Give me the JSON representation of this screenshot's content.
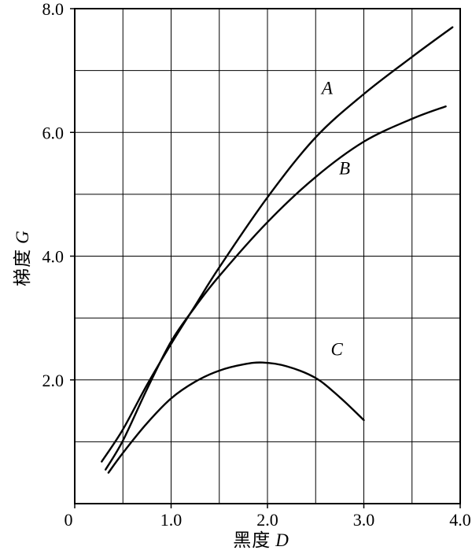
{
  "chart_data": {
    "type": "line",
    "title": "",
    "xlabel_cn": "黑度",
    "xlabel_var": "D",
    "ylabel_cn": "梯度",
    "ylabel_var": "G",
    "xlim": [
      0,
      4
    ],
    "ylim": [
      0,
      8
    ],
    "x_grid_step": 0.5,
    "y_grid_step": 1.0,
    "grid": true,
    "legend_position": "inline-labels",
    "stroke_color": "#000000",
    "background": "#ffffff",
    "x_ticks": [
      {
        "value": 0,
        "label": "0"
      },
      {
        "value": 1,
        "label": "1.0"
      },
      {
        "value": 2,
        "label": "2.0"
      },
      {
        "value": 3,
        "label": "3.0"
      },
      {
        "value": 4,
        "label": "4.0"
      }
    ],
    "y_ticks": [
      {
        "value": 2,
        "label": "2.0"
      },
      {
        "value": 4,
        "label": "4.0"
      },
      {
        "value": 6,
        "label": "6.0"
      },
      {
        "value": 8,
        "label": "8.0"
      }
    ],
    "series": [
      {
        "name": "A",
        "label": "A",
        "label_pos": {
          "x": 2.62,
          "y": 6.62
        },
        "points": [
          [
            0.28,
            0.68
          ],
          [
            0.5,
            1.2
          ],
          [
            0.75,
            1.92
          ],
          [
            1.0,
            2.58
          ],
          [
            1.25,
            3.2
          ],
          [
            1.5,
            3.82
          ],
          [
            2.0,
            4.95
          ],
          [
            2.5,
            5.92
          ],
          [
            3.0,
            6.62
          ],
          [
            3.5,
            7.22
          ],
          [
            3.92,
            7.7
          ]
        ]
      },
      {
        "name": "B",
        "label": "B",
        "label_pos": {
          "x": 2.8,
          "y": 5.32
        },
        "points": [
          [
            0.32,
            0.55
          ],
          [
            0.5,
            1.02
          ],
          [
            0.75,
            1.85
          ],
          [
            1.0,
            2.62
          ],
          [
            1.25,
            3.18
          ],
          [
            1.5,
            3.68
          ],
          [
            2.0,
            4.55
          ],
          [
            2.5,
            5.28
          ],
          [
            3.0,
            5.85
          ],
          [
            3.5,
            6.22
          ],
          [
            3.85,
            6.42
          ]
        ]
      },
      {
        "name": "C",
        "label": "C",
        "label_pos": {
          "x": 2.72,
          "y": 2.4
        },
        "points": [
          [
            0.35,
            0.5
          ],
          [
            0.5,
            0.82
          ],
          [
            0.75,
            1.3
          ],
          [
            1.0,
            1.7
          ],
          [
            1.25,
            1.97
          ],
          [
            1.5,
            2.15
          ],
          [
            1.75,
            2.25
          ],
          [
            1.95,
            2.28
          ],
          [
            2.2,
            2.22
          ],
          [
            2.5,
            2.03
          ],
          [
            2.75,
            1.72
          ],
          [
            3.0,
            1.35
          ]
        ]
      }
    ]
  }
}
